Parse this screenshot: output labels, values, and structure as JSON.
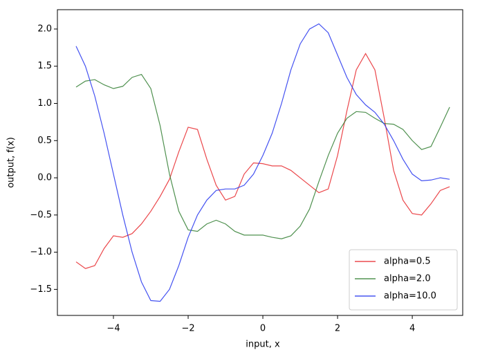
{
  "chart_data": {
    "type": "line",
    "xlabel": "input, x",
    "ylabel": "output, f(x)",
    "x": [
      -5,
      -4.75,
      -4.5,
      -4.25,
      -4,
      -3.75,
      -3.5,
      -3.25,
      -3,
      -2.75,
      -2.5,
      -2.25,
      -2,
      -1.75,
      -1.5,
      -1.25,
      -1,
      -0.75,
      -0.5,
      -0.25,
      0,
      0.25,
      0.5,
      0.75,
      1,
      1.25,
      1.5,
      1.75,
      2,
      2.25,
      2.5,
      2.75,
      3,
      3.25,
      3.5,
      3.75,
      4,
      4.25,
      4.5,
      4.75,
      5
    ],
    "series": [
      {
        "name": "alpha=0.5",
        "color": "#e8262a",
        "values": [
          -1.13,
          -1.22,
          -1.18,
          -0.95,
          -0.78,
          -0.8,
          -0.75,
          -0.62,
          -0.45,
          -0.25,
          -0.02,
          0.35,
          0.68,
          0.65,
          0.25,
          -0.1,
          -0.3,
          -0.25,
          0.05,
          0.2,
          0.19,
          0.16,
          0.16,
          0.1,
          0.0,
          -0.1,
          -0.2,
          -0.15,
          0.3,
          0.9,
          1.45,
          1.67,
          1.45,
          0.8,
          0.1,
          -0.3,
          -0.48,
          -0.5,
          -0.35,
          -0.17,
          -0.12
        ]
      },
      {
        "name": "alpha=2.0",
        "color": "#2f7d2f",
        "values": [
          1.22,
          1.3,
          1.32,
          1.25,
          1.2,
          1.23,
          1.35,
          1.39,
          1.2,
          0.7,
          0.05,
          -0.45,
          -0.7,
          -0.72,
          -0.62,
          -0.57,
          -0.62,
          -0.72,
          -0.77,
          -0.77,
          -0.77,
          -0.8,
          -0.82,
          -0.78,
          -0.65,
          -0.42,
          -0.05,
          0.3,
          0.6,
          0.8,
          0.89,
          0.88,
          0.8,
          0.73,
          0.72,
          0.65,
          0.5,
          0.38,
          0.42,
          0.68,
          0.95
        ]
      },
      {
        "name": "alpha=10.0",
        "color": "#2233ee",
        "values": [
          1.77,
          1.5,
          1.1,
          0.6,
          0.05,
          -0.5,
          -1.0,
          -1.4,
          -1.65,
          -1.66,
          -1.5,
          -1.18,
          -0.8,
          -0.5,
          -0.3,
          -0.17,
          -0.15,
          -0.15,
          -0.1,
          0.05,
          0.3,
          0.6,
          1.0,
          1.45,
          1.8,
          2.0,
          2.07,
          1.95,
          1.65,
          1.35,
          1.12,
          0.98,
          0.88,
          0.72,
          0.5,
          0.25,
          0.05,
          -0.04,
          -0.03,
          0.0,
          -0.02
        ]
      }
    ],
    "xlim": [
      -5.5,
      5.35
    ],
    "ylim": [
      -1.85,
      2.26
    ],
    "xticks": [
      {
        "value": -4,
        "label": "−4"
      },
      {
        "value": -2,
        "label": "−2"
      },
      0,
      2,
      4
    ],
    "yticks": [
      {
        "value": -1.5,
        "label": "−1.5"
      },
      {
        "value": -1,
        "label": "−1.0"
      },
      {
        "value": -0.5,
        "label": "−0.5"
      },
      {
        "value": 0,
        "label": "0.0"
      },
      0.5,
      {
        "value": 1,
        "label": "1.0"
      },
      1.5,
      {
        "value": 2,
        "label": "2.0"
      }
    ],
    "legend": "lower right"
  }
}
